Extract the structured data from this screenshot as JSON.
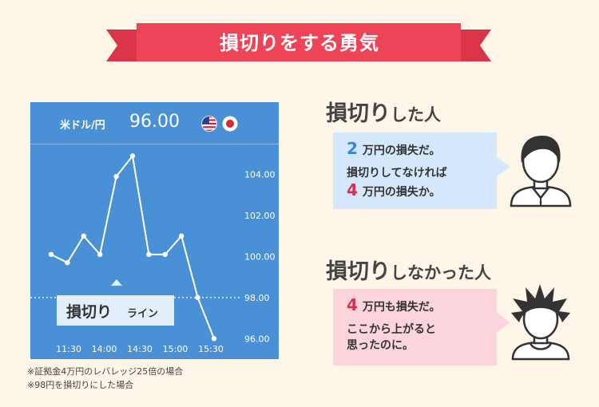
{
  "title": "損切りをする勇気",
  "chart": {
    "pair_label": "米ドル/円",
    "price": "96.00",
    "flags": [
      "us-flag-icon",
      "jp-flag-icon"
    ],
    "y_ticks": [
      "104.00",
      "102.00",
      "100.00",
      "98.00",
      "96.00"
    ],
    "x_ticks": [
      "11:30",
      "14:00",
      "14:30",
      "15:00",
      "15:30"
    ],
    "loss_cut_big": "損切り",
    "loss_cut_small": "ライン",
    "colors": {
      "background": "#4a90d6",
      "line": "#ffffff",
      "label_bg": "#e3f0fc"
    }
  },
  "chart_data": {
    "type": "line",
    "title": "",
    "xlabel": "",
    "ylabel": "",
    "ylim": [
      95.0,
      105.5
    ],
    "x_ticks": [
      "11:30",
      "14:00",
      "14:30",
      "15:00",
      "15:30"
    ],
    "series": [
      {
        "values": [
          100.1,
          99.7,
          101.0,
          100.1,
          103.9,
          104.9,
          100.1,
          100.1,
          101.0,
          98.0,
          96.0
        ]
      }
    ],
    "reference_lines": [
      {
        "y": 98.0,
        "label": "損切りライン"
      }
    ]
  },
  "notes": [
    "※証拠金4万円のレバレッジ25倍の場合",
    "※98円を損切りにした場合"
  ],
  "case1": {
    "heading_big": "損切り",
    "heading_small": "した人",
    "line1_num": "2",
    "line1_text": "万円の損失だ。",
    "line2_text": "損切りしてなければ",
    "line3_num": "4",
    "line3_text": "万円の損失か。",
    "avatar": "calm-man-icon"
  },
  "case2": {
    "heading_big": "損切り",
    "heading_small": "しなかった人",
    "line1_num": "4",
    "line1_text": "万円も損失だ。",
    "line2_text": "ここから上がると",
    "line3_text": "思ったのに。",
    "avatar": "spiky-hair-man-icon"
  }
}
